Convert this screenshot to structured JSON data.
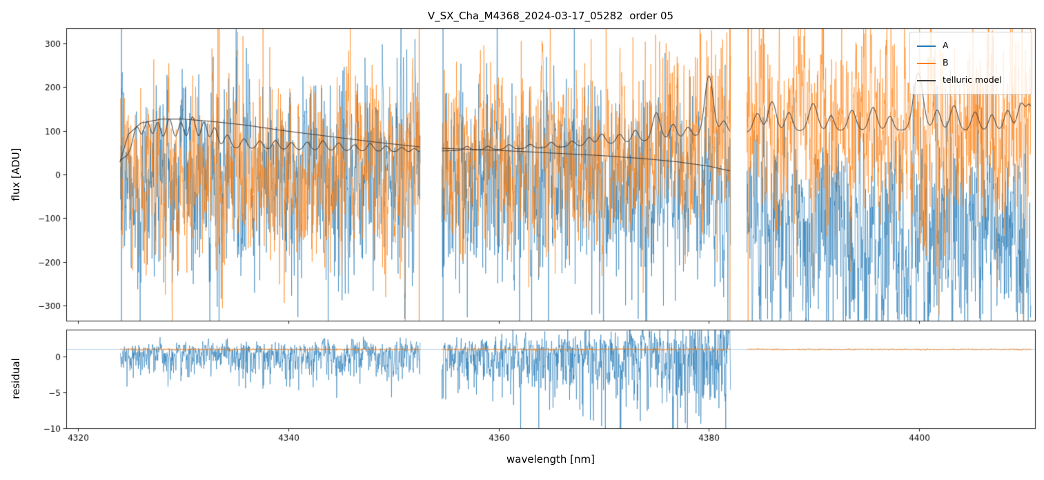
{
  "chart_data": {
    "type": "line",
    "title": "V_SX_Cha_M4368_2024-03-17_05282  order 05",
    "xlabel": "wavelength [nm]",
    "xlim": [
      4318.9,
      4411.0
    ],
    "xticks": [
      4320,
      4340,
      4360,
      4380,
      4400
    ],
    "segments": [
      [
        4324.05,
        4352.55
      ],
      [
        4354.6,
        4382.05
      ],
      [
        4383.6,
        4410.6
      ]
    ],
    "panels": [
      {
        "name": "flux",
        "ylabel": "flux [ADU]",
        "ylim": [
          -335,
          335
        ],
        "yticks": [
          300,
          200,
          100,
          0,
          -100,
          -200,
          -300
        ]
      },
      {
        "name": "residual",
        "ylabel": "residual",
        "ylim": [
          -10,
          3.75
        ],
        "yticks": [
          0,
          -5,
          -10
        ]
      }
    ],
    "legend": {
      "position": "upper right",
      "entries": [
        {
          "label": "A",
          "color": "#1f77b4"
        },
        {
          "label": "B",
          "color": "#ff7f0e"
        },
        {
          "label": "telluric model",
          "color": "#3d3d3d"
        }
      ]
    },
    "flux_series": [
      {
        "name": "A",
        "color": "#1f77b4",
        "seg_means": [
          0,
          0,
          -135
        ],
        "seg_means_end": [
          0,
          -40,
          -135
        ],
        "seg_stds": [
          115,
          115,
          130
        ],
        "seed": 101
      },
      {
        "name": "B",
        "color": "#ff7f0e",
        "seg_means": [
          5,
          20,
          110
        ],
        "seg_means_end": [
          5,
          70,
          110
        ],
        "seg_stds": [
          105,
          115,
          125
        ],
        "seed": 202
      }
    ],
    "edge_spikes": [
      {
        "x": 4324.15,
        "series": "A"
      },
      {
        "x": 4352.45,
        "series": "B"
      },
      {
        "x": 4354.72,
        "series": "A"
      },
      {
        "x": 4382.0,
        "series": "B"
      },
      {
        "x": 4383.72,
        "series": "B"
      }
    ],
    "telluric_model": {
      "color": "#3d3d3d",
      "baseline": [
        [
          [
            4324.0,
            32
          ],
          [
            4325.2,
            52
          ],
          [
            4327.0,
            60
          ],
          [
            4330.0,
            62
          ],
          [
            4335.0,
            60
          ],
          [
            4340.0,
            57
          ],
          [
            4346.0,
            54
          ],
          [
            4352.55,
            51
          ]
        ],
        [
          [
            4354.6,
            54
          ],
          [
            4358.0,
            56
          ],
          [
            4362.0,
            59
          ],
          [
            4366.0,
            63
          ],
          [
            4370.0,
            69
          ],
          [
            4374.0,
            77
          ],
          [
            4378.0,
            86
          ],
          [
            4382.05,
            96
          ]
        ],
        [
          [
            4383.6,
            97
          ],
          [
            4388.0,
            100
          ],
          [
            4394.0,
            101
          ],
          [
            4400.0,
            102
          ],
          [
            4406.0,
            101
          ],
          [
            4410.6,
            100
          ]
        ]
      ],
      "smooth_lines": [
        [
          [
            4324.0,
            28
          ],
          [
            4324.8,
            92
          ],
          [
            4326.0,
            118
          ],
          [
            4328.0,
            127
          ],
          [
            4330.0,
            127
          ],
          [
            4333.0,
            121
          ],
          [
            4336.0,
            113
          ],
          [
            4340.0,
            99
          ],
          [
            4344.0,
            87
          ],
          [
            4348.0,
            75
          ],
          [
            4352.55,
            63
          ]
        ],
        [
          [
            4354.6,
            60
          ],
          [
            4358.0,
            57
          ],
          [
            4362.0,
            53
          ],
          [
            4366.0,
            48
          ],
          [
            4370.0,
            43
          ],
          [
            4374.0,
            36
          ],
          [
            4377.0,
            29
          ],
          [
            4380.0,
            19
          ],
          [
            4382.05,
            8
          ]
        ]
      ],
      "peaks": [
        [
          4325.6,
          55,
          0.33
        ],
        [
          4326.6,
          62,
          0.33
        ],
        [
          4327.6,
          58,
          0.3
        ],
        [
          4328.7,
          66,
          0.33
        ],
        [
          4329.8,
          56,
          0.3
        ],
        [
          4330.9,
          70,
          0.33
        ],
        [
          4332.0,
          58,
          0.3
        ],
        [
          4333.0,
          46,
          0.3
        ],
        [
          4334.2,
          30,
          0.3
        ],
        [
          4335.8,
          22,
          0.28
        ],
        [
          4337.3,
          18,
          0.28
        ],
        [
          4338.8,
          20,
          0.28
        ],
        [
          4340.3,
          16,
          0.28
        ],
        [
          4341.8,
          18,
          0.28
        ],
        [
          4343.3,
          22,
          0.28
        ],
        [
          4344.8,
          18,
          0.28
        ],
        [
          4346.3,
          14,
          0.28
        ],
        [
          4347.8,
          18,
          0.28
        ],
        [
          4349.3,
          13,
          0.28
        ],
        [
          4350.8,
          10,
          0.28
        ],
        [
          4352.0,
          8,
          0.25
        ],
        [
          4357.0,
          9,
          0.28
        ],
        [
          4359.0,
          8,
          0.28
        ],
        [
          4361.0,
          10,
          0.28
        ],
        [
          4363.0,
          9,
          0.28
        ],
        [
          4365.0,
          12,
          0.28
        ],
        [
          4367.0,
          12,
          0.28
        ],
        [
          4368.6,
          18,
          0.3
        ],
        [
          4369.8,
          24,
          0.33
        ],
        [
          4371.5,
          20,
          0.3
        ],
        [
          4373.0,
          26,
          0.3
        ],
        [
          4375.0,
          62,
          0.36
        ],
        [
          4376.6,
          32,
          0.3
        ],
        [
          4378.0,
          22,
          0.3
        ],
        [
          4380.0,
          135,
          0.4
        ],
        [
          4381.4,
          28,
          0.3
        ],
        [
          4384.6,
          42,
          0.35
        ],
        [
          4386.0,
          68,
          0.38
        ],
        [
          4387.6,
          42,
          0.33
        ],
        [
          4389.9,
          62,
          0.4
        ],
        [
          4391.6,
          34,
          0.3
        ],
        [
          4393.6,
          46,
          0.36
        ],
        [
          4395.6,
          52,
          0.36
        ],
        [
          4397.2,
          32,
          0.3
        ],
        [
          4399.9,
          130,
          0.45
        ],
        [
          4401.7,
          46,
          0.33
        ],
        [
          4403.3,
          56,
          0.36
        ],
        [
          4405.3,
          42,
          0.33
        ],
        [
          4406.9,
          36,
          0.3
        ],
        [
          4408.4,
          46,
          0.33
        ],
        [
          4409.7,
          62,
          0.36
        ],
        [
          4410.5,
          55,
          0.3
        ]
      ]
    },
    "residual_series": [
      {
        "name": "A",
        "color": "#1f77b4",
        "base": 0.4,
        "segments_used": [
          0,
          1
        ],
        "seg_std_start": [
          1.0,
          1.3
        ],
        "seg_std_end": [
          1.4,
          3.8
        ],
        "neg_skew": 1.9,
        "seed": 303
      },
      {
        "name": "B",
        "color": "#ff7f0e",
        "base": 1.0,
        "seg_stds": [
          0.07,
          0.07,
          0.05
        ],
        "seed": 404
      }
    ],
    "residual_hline": {
      "y": 1.0,
      "color": "#aec7e8"
    }
  }
}
